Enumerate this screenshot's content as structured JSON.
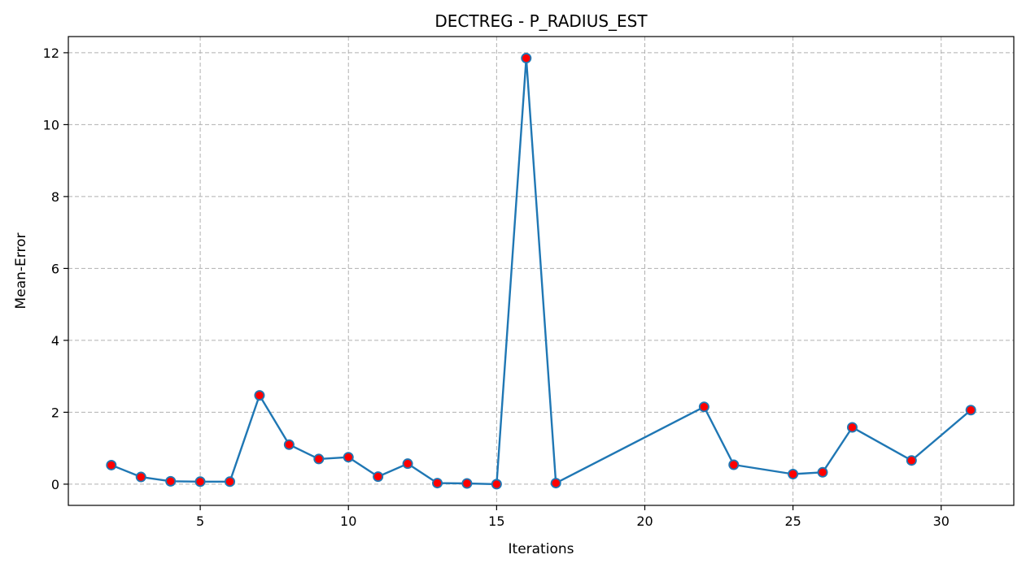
{
  "chart_data": {
    "type": "line",
    "title": "DECTREG - P_RADIUS_EST",
    "xlabel": "Iterations",
    "ylabel": "Mean-Error",
    "xlim": [
      0.55,
      32.45
    ],
    "ylim": [
      -0.59,
      12.45
    ],
    "xticks": [
      5,
      10,
      15,
      20,
      25,
      30
    ],
    "yticks": [
      0,
      2,
      4,
      6,
      8,
      10,
      12
    ],
    "grid": true,
    "series": [
      {
        "x": [
          2,
          3,
          4,
          5,
          6,
          7,
          8,
          9,
          10,
          11,
          12,
          13,
          14,
          15,
          16,
          17,
          22,
          23,
          25,
          26,
          27,
          29,
          31
        ],
        "y": [
          0.53,
          0.2,
          0.08,
          0.07,
          0.07,
          2.47,
          1.1,
          0.7,
          0.75,
          0.21,
          0.57,
          0.03,
          0.02,
          0.0,
          11.85,
          0.03,
          2.15,
          0.54,
          0.28,
          0.33,
          1.58,
          0.66,
          2.06
        ],
        "line_color": "#1f77b4",
        "marker_face": "#ff0000",
        "marker_edge": "#1f77b4"
      }
    ]
  }
}
